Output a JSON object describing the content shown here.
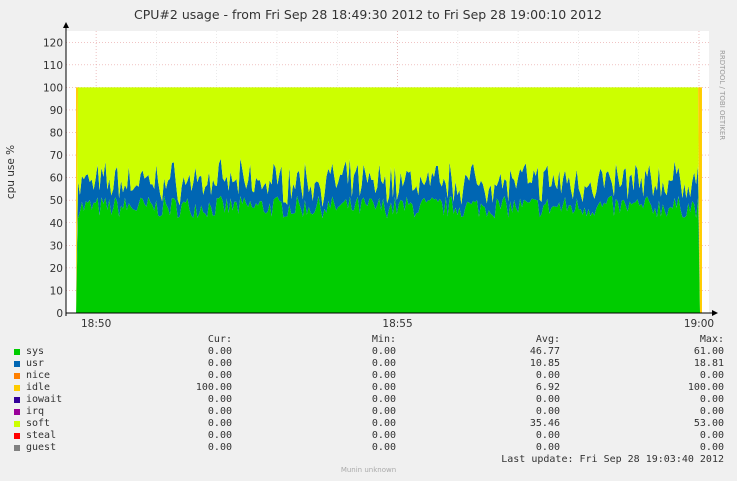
{
  "chart_data": {
    "type": "area",
    "title": "CPU#2 usage - from Fri Sep 28 18:49:30 2012 to Fri Sep 28 19:00:10 2012",
    "ylabel": "cpu use %",
    "watermark": "RRDTOOL / TOBI OETIKER",
    "ylim": [
      0,
      125
    ],
    "yticks": [
      0,
      10,
      20,
      30,
      40,
      50,
      60,
      70,
      80,
      90,
      100,
      110,
      120
    ],
    "xlim": [
      "18:49:30",
      "19:00:10"
    ],
    "xticks": [
      "18:50",
      "18:55",
      "19:00"
    ],
    "data_span": [
      "18:49:40",
      "19:00:03"
    ],
    "stacked": true,
    "grid": true,
    "series_summary": [
      {
        "name": "sys",
        "color": "#00cc00",
        "typical": 47
      },
      {
        "name": "usr",
        "color": "#0066b3",
        "typical": 11
      },
      {
        "name": "soft",
        "color": "#ccff00",
        "typical": 42
      },
      {
        "name": "idle",
        "color": "#ffcc00",
        "regions": [
          "18:49:30-18:49:40",
          "19:00:00-19:00:03"
        ]
      }
    ]
  },
  "legend": {
    "headers": {
      "cur": "Cur:",
      "min": "Min:",
      "avg": "Avg:",
      "max": "Max:"
    },
    "rows": [
      {
        "name": "sys",
        "color": "#00cc00",
        "cur": "0.00",
        "min": "0.00",
        "avg": "46.77",
        "max": "61.00"
      },
      {
        "name": "usr",
        "color": "#0066b3",
        "cur": "0.00",
        "min": "0.00",
        "avg": "10.85",
        "max": "18.81"
      },
      {
        "name": "nice",
        "color": "#ff8000",
        "cur": "0.00",
        "min": "0.00",
        "avg": "0.00",
        "max": "0.00"
      },
      {
        "name": "idle",
        "color": "#ffcc00",
        "cur": "100.00",
        "min": "0.00",
        "avg": "6.92",
        "max": "100.00"
      },
      {
        "name": "iowait",
        "color": "#330099",
        "cur": "0.00",
        "min": "0.00",
        "avg": "0.00",
        "max": "0.00"
      },
      {
        "name": "irq",
        "color": "#990099",
        "cur": "0.00",
        "min": "0.00",
        "avg": "0.00",
        "max": "0.00"
      },
      {
        "name": "soft",
        "color": "#ccff00",
        "cur": "0.00",
        "min": "0.00",
        "avg": "35.46",
        "max": "53.00"
      },
      {
        "name": "steal",
        "color": "#ff0000",
        "cur": "0.00",
        "min": "0.00",
        "avg": "0.00",
        "max": "0.00"
      },
      {
        "name": "guest",
        "color": "#808080",
        "cur": "0.00",
        "min": "0.00",
        "avg": "0.00",
        "max": "0.00"
      }
    ]
  },
  "last_update": "Last update:  Fri Sep 28 19:03:40 2012",
  "footer": "Munin unknown"
}
